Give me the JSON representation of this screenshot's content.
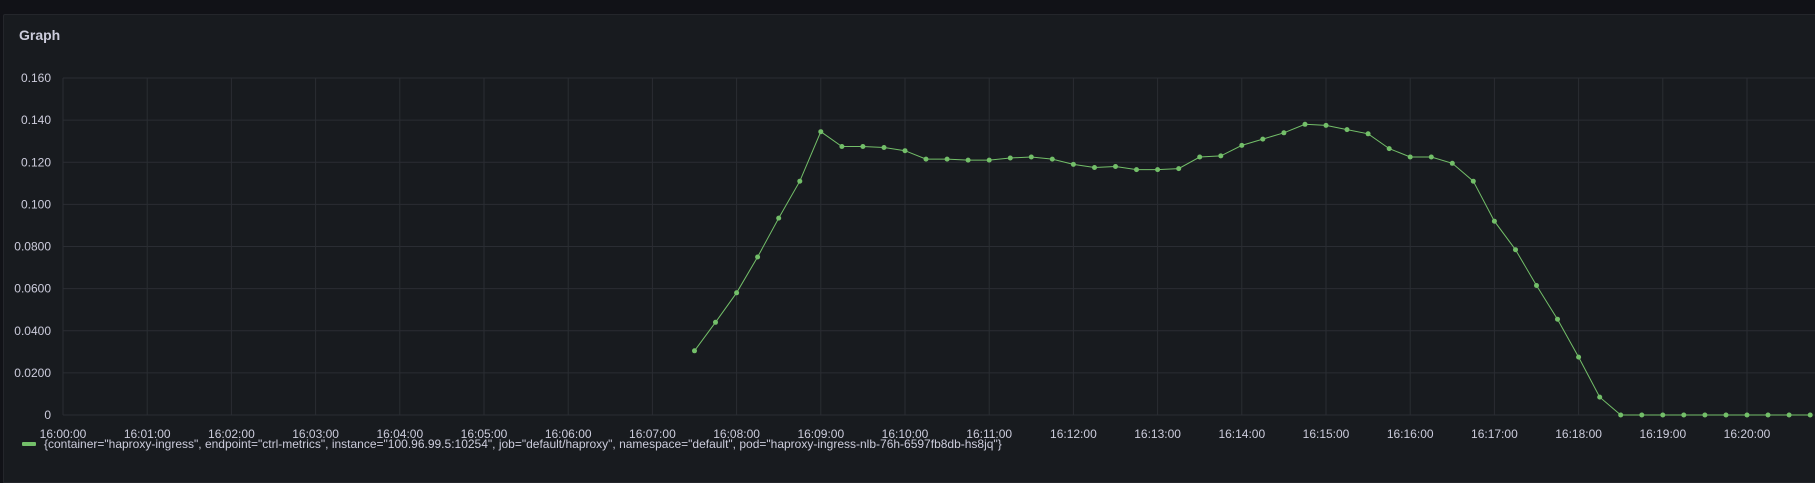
{
  "panel": {
    "title": "Graph"
  },
  "chart_data": {
    "type": "line",
    "title": "Graph",
    "xlabel": "",
    "ylabel": "",
    "ylim": [
      0,
      0.16
    ],
    "xlim": [
      "16:00:00",
      "16:20:55"
    ],
    "grid": true,
    "legend_position": "bottom-left",
    "y_ticks": [
      "0",
      "0.0200",
      "0.0400",
      "0.0600",
      "0.0800",
      "0.100",
      "0.120",
      "0.140",
      "0.160"
    ],
    "y_tick_values": [
      0,
      0.02,
      0.04,
      0.06,
      0.08,
      0.1,
      0.12,
      0.14,
      0.16
    ],
    "x_ticks": [
      "16:00:00",
      "16:01:00",
      "16:02:00",
      "16:03:00",
      "16:04:00",
      "16:05:00",
      "16:06:00",
      "16:07:00",
      "16:08:00",
      "16:09:00",
      "16:10:00",
      "16:11:00",
      "16:12:00",
      "16:13:00",
      "16:14:00",
      "16:15:00",
      "16:16:00",
      "16:17:00",
      "16:18:00",
      "16:19:00",
      "16:20:00"
    ],
    "series": [
      {
        "name": "{container=\"haproxy-ingress\", endpoint=\"ctrl-metrics\", instance=\"100.96.99.5:10254\", job=\"default/haproxy\", namespace=\"default\", pod=\"haproxy-ingress-nlb-76h-6597fb8db-hs8jq\"}",
        "color": "#73bf69",
        "x": [
          "16:07:30",
          "16:07:45",
          "16:08:00",
          "16:08:15",
          "16:08:30",
          "16:08:45",
          "16:09:00",
          "16:09:15",
          "16:09:30",
          "16:09:45",
          "16:10:00",
          "16:10:15",
          "16:10:30",
          "16:10:45",
          "16:11:00",
          "16:11:15",
          "16:11:30",
          "16:11:45",
          "16:12:00",
          "16:12:15",
          "16:12:30",
          "16:12:45",
          "16:13:00",
          "16:13:15",
          "16:13:30",
          "16:13:45",
          "16:14:00",
          "16:14:15",
          "16:14:30",
          "16:14:45",
          "16:15:00",
          "16:15:15",
          "16:15:30",
          "16:15:45",
          "16:16:00",
          "16:16:15",
          "16:16:30",
          "16:16:45",
          "16:17:00",
          "16:17:15",
          "16:17:30",
          "16:17:45",
          "16:18:00",
          "16:18:15",
          "16:18:30",
          "16:18:45",
          "16:19:00",
          "16:19:15",
          "16:19:30",
          "16:19:45",
          "16:20:00",
          "16:20:15",
          "16:20:30",
          "16:20:45"
        ],
        "values": [
          0.0305,
          0.044,
          0.058,
          0.075,
          0.0935,
          0.111,
          0.1345,
          0.1275,
          0.1275,
          0.127,
          0.1255,
          0.1215,
          0.1215,
          0.121,
          0.121,
          0.122,
          0.1225,
          0.1215,
          0.119,
          0.1175,
          0.118,
          0.1165,
          0.1165,
          0.117,
          0.1225,
          0.123,
          0.128,
          0.131,
          0.134,
          0.138,
          0.1375,
          0.1355,
          0.1335,
          0.1265,
          0.1225,
          0.1225,
          0.1195,
          0.111,
          0.092,
          0.0785,
          0.0615,
          0.0455,
          0.0275,
          0.0085,
          0,
          0,
          0,
          0,
          0,
          0,
          0,
          0,
          0,
          0
        ]
      }
    ]
  }
}
